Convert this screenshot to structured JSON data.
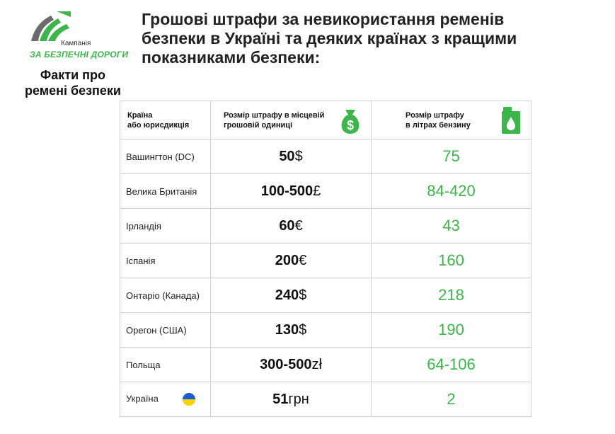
{
  "logo": {
    "small": "Кампанія",
    "big": "ЗА БЕЗПЕЧНІ ДОРОГИ"
  },
  "facts": {
    "line1": "Факти про",
    "line2": "ремені безпеки"
  },
  "title": {
    "line1": "Грошові штрафи за невикористання ременів",
    "line2": "безпеки в Україні та деяких країнах з кращими",
    "line3": "показниками безпеки:"
  },
  "table": {
    "headers": [
      {
        "line1": "Країна",
        "line2": "або юрисдикція"
      },
      {
        "line1": "Розмір штрафу в  місцевій",
        "line2": "грошовій одиниці",
        "icon": "money-bag-icon"
      },
      {
        "line1": "Розмір штрафу",
        "line2": "в літрах бензину",
        "icon": "fuel-canister-icon"
      }
    ],
    "rows": [
      {
        "country": "Вашингтон (DC)",
        "amount": "50",
        "currency": "$",
        "litres": "75"
      },
      {
        "country": "Велика Британія",
        "amount": "100-500",
        "currency": "£",
        "litres": "84-420"
      },
      {
        "country": "Ірландія",
        "amount": "60",
        "currency": "€",
        "litres": "43"
      },
      {
        "country": "Іспанія",
        "amount": "200",
        "currency": "€",
        "litres": "160"
      },
      {
        "country": "Онтаріо (Канада)",
        "amount": "240",
        "currency": "$",
        "litres": "218"
      },
      {
        "country": "Орегон (США)",
        "amount": "130",
        "currency": "$",
        "litres": "190"
      },
      {
        "country": "Польща",
        "amount": "300-500",
        "currency": "zł",
        "litres": "64-106"
      },
      {
        "country": "Україна",
        "amount": "51",
        "currency": "грн",
        "litres": "2",
        "flag": "ukraine-flag-icon"
      }
    ]
  },
  "colors": {
    "accent_green": "#3cb54a",
    "flag_blue": "#1f5bd6",
    "flag_yellow": "#f5d300"
  }
}
